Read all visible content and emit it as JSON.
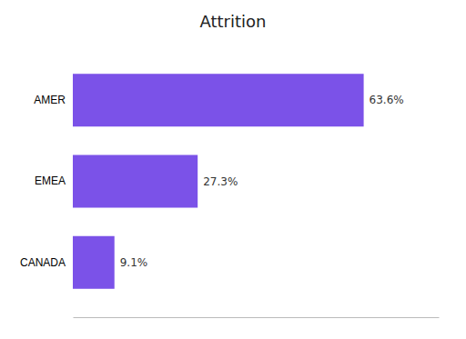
{
  "chart_data": {
    "type": "bar",
    "orientation": "horizontal",
    "title": "Attrition",
    "categories": [
      "CANADA",
      "EMEA",
      "AMER"
    ],
    "values": [
      9.1,
      27.3,
      63.6
    ],
    "value_labels": [
      "9.1%",
      "27.3%",
      "63.6%"
    ],
    "data_labels": true,
    "color": "#7B52E8",
    "xlim": [
      0,
      80
    ],
    "grid": false,
    "tick_labels": "y"
  }
}
